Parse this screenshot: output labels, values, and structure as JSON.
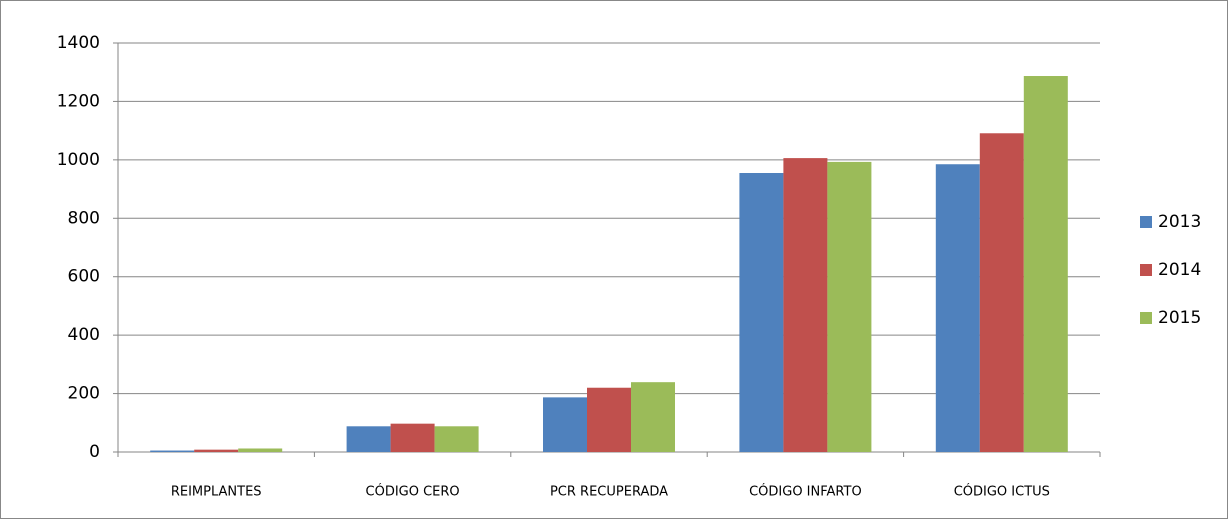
{
  "chart_data": {
    "type": "bar",
    "categories": [
      "REIMPLANTES",
      "CÓDIGO CERO",
      "PCR RECUPERADA",
      "CÓDIGO INFARTO",
      "CÓDIGO ICTUS"
    ],
    "series": [
      {
        "name": "2013",
        "color": "#4f81bd",
        "values": [
          5,
          88,
          187,
          955,
          985
        ]
      },
      {
        "name": "2014",
        "color": "#c0504d",
        "values": [
          8,
          97,
          220,
          1006,
          1091
        ]
      },
      {
        "name": "2015",
        "color": "#9bbb59",
        "values": [
          12,
          88,
          239,
          993,
          1287
        ]
      }
    ],
    "ylim": [
      0,
      1400
    ],
    "yticks": [
      0,
      200,
      400,
      600,
      800,
      1000,
      1200,
      1400
    ],
    "grid": true,
    "legend": "right"
  }
}
